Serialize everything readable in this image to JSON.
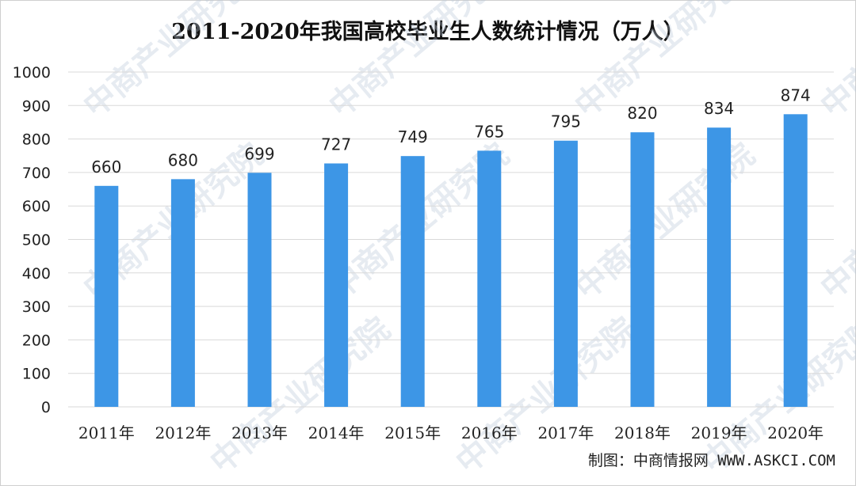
{
  "title": "2011-2020年我国高校毕业生人数统计情况（万人）",
  "source": "制图：中商情报网 WWW.ASKCI.COM",
  "watermark": "中商产业研究院",
  "colors": {
    "bar": "#3d96e6",
    "grid": "#d9d9d9"
  },
  "chart_data": {
    "type": "bar",
    "title": "2011-2020年我国高校毕业生人数统计情况（万人）",
    "categories": [
      "2011年",
      "2012年",
      "2013年",
      "2014年",
      "2015年",
      "2016年",
      "2017年",
      "2018年",
      "2019年",
      "2020年"
    ],
    "values": [
      660,
      680,
      699,
      727,
      749,
      765,
      795,
      820,
      834,
      874
    ],
    "ylim": [
      0,
      1000
    ],
    "yticks": [
      0,
      100,
      200,
      300,
      400,
      500,
      600,
      700,
      800,
      900,
      1000
    ],
    "grid": true,
    "legend": "none"
  }
}
